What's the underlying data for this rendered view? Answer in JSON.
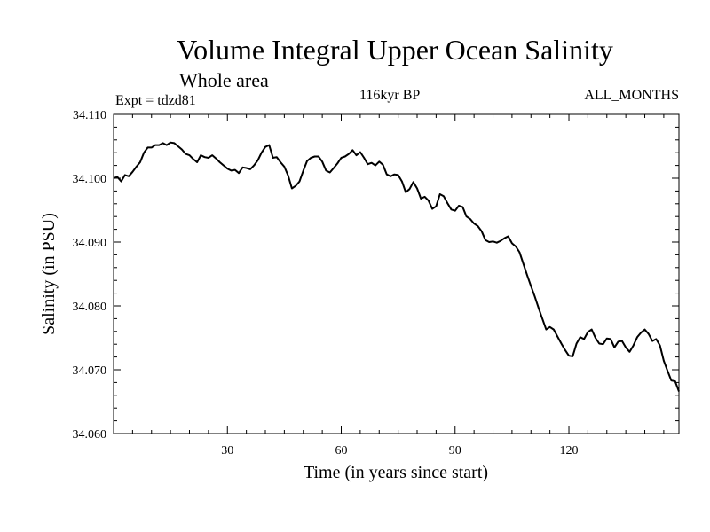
{
  "header": {
    "title": "Volume Integral Upper Ocean Salinity",
    "subtitle": "Whole area",
    "expt": "Expt = tdzd81",
    "period": "116kyr BP",
    "months": "ALL_MONTHS"
  },
  "chart_data": {
    "type": "line",
    "title": "Volume Integral Upper Ocean Salinity",
    "xlabel": "Time (in years since start)",
    "ylabel": "Salinity (in PSU)",
    "xlim": [
      0,
      149
    ],
    "ylim": [
      34.06,
      34.11
    ],
    "xticks": [
      30,
      60,
      90,
      120
    ],
    "xtick_labels": [
      "30",
      "60",
      "90",
      "120"
    ],
    "yticks": [
      34.06,
      34.07,
      34.08,
      34.09,
      34.1,
      34.11
    ],
    "ytick_labels": [
      "34.060",
      "34.070",
      "34.080",
      "34.090",
      "34.100",
      "34.110"
    ],
    "grid": false,
    "series": [
      {
        "name": "Salinity",
        "x": [
          0,
          1,
          2,
          3,
          4,
          5,
          6,
          7,
          8,
          9,
          10,
          11,
          12,
          13,
          14,
          15,
          16,
          17,
          18,
          19,
          20,
          21,
          22,
          23,
          24,
          25,
          26,
          27,
          28,
          29,
          30,
          31,
          32,
          33,
          34,
          35,
          36,
          37,
          38,
          39,
          40,
          41,
          42,
          43,
          44,
          45,
          46,
          47,
          48,
          49,
          50,
          51,
          52,
          53,
          54,
          55,
          56,
          57,
          58,
          59,
          60,
          61,
          62,
          63,
          64,
          65,
          66,
          67,
          68,
          69,
          70,
          71,
          72,
          73,
          74,
          75,
          76,
          77,
          78,
          79,
          80,
          81,
          82,
          83,
          84,
          85,
          86,
          87,
          88,
          89,
          90,
          91,
          92,
          93,
          94,
          95,
          96,
          97,
          98,
          99,
          100,
          101,
          102,
          103,
          104,
          105,
          106,
          107,
          108,
          109,
          110,
          111,
          112,
          113,
          114,
          115,
          116,
          117,
          118,
          119,
          120,
          121,
          122,
          123,
          124,
          125,
          126,
          127,
          128,
          129,
          130,
          131,
          132,
          133,
          134,
          135,
          136,
          137,
          138,
          139,
          140,
          141,
          142,
          143,
          144,
          145,
          146,
          147,
          148,
          149
        ],
        "values": [
          34.1,
          34.1002,
          34.0995,
          34.1005,
          34.1003,
          34.101,
          34.1018,
          34.1025,
          34.104,
          34.1048,
          34.1048,
          34.1052,
          34.1052,
          34.1055,
          34.1052,
          34.1056,
          34.1055,
          34.105,
          34.1045,
          34.1038,
          34.1036,
          34.103,
          34.1025,
          34.1036,
          34.1033,
          34.1032,
          34.1036,
          34.1031,
          34.1025,
          34.102,
          34.1015,
          34.1012,
          34.1013,
          34.1008,
          34.1017,
          34.1016,
          34.1014,
          34.102,
          34.1028,
          34.104,
          34.1049,
          34.1052,
          34.1032,
          34.1033,
          34.1025,
          34.1018,
          34.1004,
          34.0984,
          34.0988,
          34.0995,
          34.1012,
          34.1027,
          34.1032,
          34.1034,
          34.1034,
          34.1026,
          34.1012,
          34.1009,
          34.1016,
          34.1023,
          34.1032,
          34.1034,
          34.1038,
          34.1044,
          34.1036,
          34.1041,
          34.1032,
          34.1022,
          34.1024,
          34.102,
          34.1026,
          34.1021,
          34.1006,
          34.1003,
          34.1006,
          34.1005,
          34.0995,
          34.0978,
          34.0983,
          34.0994,
          34.0984,
          34.0968,
          34.0971,
          34.0965,
          34.0952,
          34.0956,
          34.0975,
          34.0972,
          34.0961,
          34.0951,
          34.0949,
          34.0957,
          34.0955,
          34.094,
          34.0936,
          34.0929,
          34.0925,
          34.0917,
          34.0903,
          34.09,
          34.0901,
          34.0899,
          34.0902,
          34.0906,
          34.0909,
          34.0898,
          34.0893,
          34.0884,
          34.0866,
          34.0848,
          34.0831,
          34.0815,
          34.0797,
          34.078,
          34.0763,
          34.0767,
          34.0763,
          34.0752,
          34.0741,
          34.0731,
          34.0722,
          34.0721,
          34.0741,
          34.0751,
          34.0748,
          34.0759,
          34.0763,
          34.075,
          34.0741,
          34.074,
          34.0749,
          34.0748,
          34.0735,
          34.0744,
          34.0745,
          34.0735,
          34.0728,
          34.0738,
          34.0751,
          34.0758,
          34.0763,
          34.0756,
          34.0745,
          34.0748,
          34.0738,
          34.0714,
          34.0698,
          34.0683,
          34.0682,
          34.0666
        ]
      }
    ]
  }
}
